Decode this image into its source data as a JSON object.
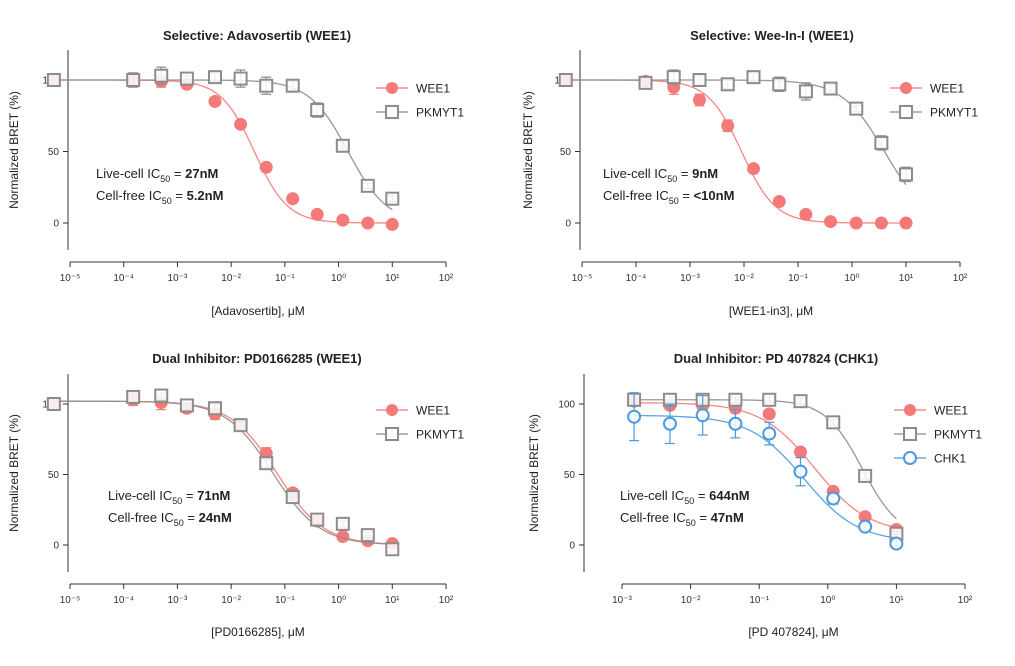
{
  "colors": {
    "WEE1": "#f47a79",
    "PKMYT1": "#8c8c8c",
    "CHK1": "#4a9ae0",
    "axis": "#333333"
  },
  "chart_data": [
    {
      "type": "scatter",
      "title": "Selective: Adavosertib (WEE1)",
      "xlabel": "[Adavosertib], μM",
      "ylabel": "Normalized BRET (%)",
      "xscale": "log",
      "xlim_exp": [
        -5,
        2
      ],
      "x_ticks": [
        "10⁻⁵",
        "10⁻⁴",
        "10⁻³",
        "10⁻²",
        "10⁻¹",
        "10⁰",
        "10¹",
        "10²"
      ],
      "y_ticks": [
        0,
        50,
        100
      ],
      "ylim": [
        -20,
        120
      ],
      "legend_position": "top-right",
      "annotation": {
        "line1_prefix": "Live-cell IC",
        "line1_sub": "50",
        "line1_eq": " = ",
        "line1_value": "27nM",
        "line2_prefix": "Cell-free IC",
        "line2_sub": "50",
        "line2_eq": " = ",
        "line2_value": "5.2nM"
      },
      "series": [
        {
          "name": "WEE1",
          "marker": "circle-filled",
          "color_key": "WEE1",
          "ic50": 0.027,
          "top": 100,
          "bottom": 0,
          "hill": 1.4,
          "x": [
            5e-06,
            0.00015,
            0.0005,
            0.0015,
            0.005,
            0.015,
            0.045,
            0.14,
            0.4,
            1.2,
            3.5,
            10
          ],
          "y": [
            100,
            100,
            99,
            97,
            85,
            69,
            39,
            17,
            6,
            2,
            0,
            -1
          ],
          "err": [
            3,
            3,
            4,
            2,
            2,
            2,
            2,
            2,
            2,
            2,
            1,
            1
          ]
        },
        {
          "name": "PKMYT1",
          "marker": "square-open",
          "color_key": "PKMYT1",
          "ic50": 1.5,
          "top": 100,
          "bottom": 0,
          "hill": 1.2,
          "x": [
            5e-06,
            0.00015,
            0.0005,
            0.0015,
            0.005,
            0.015,
            0.045,
            0.14,
            0.4,
            1.2,
            3.5,
            10
          ],
          "y": [
            100,
            100,
            103,
            101,
            102,
            101,
            96,
            96,
            79,
            54,
            26,
            17
          ],
          "err": [
            3,
            5,
            6,
            2,
            3,
            6,
            6,
            3,
            5,
            3,
            2,
            2
          ]
        }
      ]
    },
    {
      "type": "scatter",
      "title": "Selective: Wee-In-I (WEE1)",
      "xlabel": "[WEE1-in3], μM",
      "ylabel": "Normalized BRET (%)",
      "xscale": "log",
      "xlim_exp": [
        -5,
        2
      ],
      "x_ticks": [
        "10⁻⁵",
        "10⁻⁴",
        "10⁻³",
        "10⁻²",
        "10⁻¹",
        "10⁰",
        "10¹",
        "10²"
      ],
      "y_ticks": [
        0,
        50,
        100
      ],
      "ylim": [
        -20,
        120
      ],
      "legend_position": "top-right",
      "annotation": {
        "line1_prefix": "Live-cell IC",
        "line1_sub": "50",
        "line1_eq": " = ",
        "line1_value": "9nM",
        "line2_prefix": "Cell-free IC",
        "line2_sub": "50",
        "line2_eq": " = ",
        "line2_value": "<10nM"
      },
      "series": [
        {
          "name": "WEE1",
          "marker": "circle-filled",
          "color_key": "WEE1",
          "ic50": 0.009,
          "top": 100,
          "bottom": 0,
          "hill": 1.4,
          "x": [
            5e-06,
            0.00015,
            0.0005,
            0.0015,
            0.005,
            0.015,
            0.045,
            0.14,
            0.4,
            1.2,
            3.5,
            10
          ],
          "y": [
            100,
            99,
            95,
            86,
            68,
            38,
            15,
            6,
            1,
            0,
            0,
            0
          ],
          "err": [
            4,
            3,
            5,
            4,
            4,
            2,
            2,
            1,
            1,
            1,
            1,
            1
          ]
        },
        {
          "name": "PKMYT1",
          "marker": "square-open",
          "color_key": "PKMYT1",
          "ic50": 4.0,
          "top": 100,
          "bottom": 0,
          "hill": 1.1,
          "x": [
            5e-06,
            0.00015,
            0.0005,
            0.0015,
            0.005,
            0.015,
            0.045,
            0.14,
            0.4,
            1.2,
            3.5,
            10
          ],
          "y": [
            100,
            98,
            102,
            100,
            97,
            102,
            97,
            92,
            94,
            80,
            56,
            34
          ],
          "err": [
            4,
            4,
            5,
            3,
            3,
            3,
            5,
            6,
            3,
            2,
            5,
            5
          ]
        }
      ]
    },
    {
      "type": "scatter",
      "title": "Dual Inhibitor: PD0166285 (WEE1)",
      "xlabel": "[PD0166285], μM",
      "ylabel": "Normalized BRET (%)",
      "xscale": "log",
      "xlim_exp": [
        -5,
        2
      ],
      "x_ticks": [
        "10⁻⁵",
        "10⁻⁴",
        "10⁻³",
        "10⁻²",
        "10⁻¹",
        "10⁰",
        "10¹",
        "10²"
      ],
      "y_ticks": [
        0,
        50,
        100
      ],
      "ylim": [
        -20,
        120
      ],
      "legend_position": "top-right",
      "annotation": {
        "line1_prefix": "Live-cell IC",
        "line1_sub": "50",
        "line1_eq": " = ",
        "line1_value": "71nM",
        "line2_prefix": "Cell-free IC",
        "line2_sub": "50",
        "line2_eq": " = ",
        "line2_value": "24nM"
      },
      "series": [
        {
          "name": "WEE1",
          "marker": "circle-filled",
          "color_key": "WEE1",
          "ic50": 0.071,
          "top": 102,
          "bottom": 0,
          "hill": 1.0,
          "x": [
            5e-06,
            0.00015,
            0.0005,
            0.0015,
            0.005,
            0.015,
            0.045,
            0.14,
            0.4,
            1.2,
            3.5,
            10
          ],
          "y": [
            100,
            103,
            101,
            97,
            93,
            85,
            65,
            37,
            17,
            6,
            3,
            1
          ],
          "err": [
            3,
            4,
            5,
            3,
            4,
            3,
            4,
            3,
            2,
            2,
            2,
            2
          ]
        },
        {
          "name": "PKMYT1",
          "marker": "square-open",
          "color_key": "PKMYT1",
          "ic50": 0.06,
          "top": 102,
          "bottom": 0,
          "hill": 1.0,
          "x": [
            5e-06,
            0.00015,
            0.0005,
            0.0015,
            0.005,
            0.015,
            0.045,
            0.14,
            0.4,
            1.2,
            3.5,
            10
          ],
          "y": [
            100,
            105,
            106,
            99,
            97,
            85,
            58,
            34,
            18,
            15,
            7,
            -3
          ],
          "err": [
            2,
            3,
            2,
            2,
            3,
            3,
            3,
            2,
            2,
            2,
            2,
            2
          ]
        }
      ]
    },
    {
      "type": "scatter",
      "title": "Dual Inhibitor: PD 407824 (CHK1)",
      "xlabel": "[PD 407824], μM",
      "ylabel": "Normalized BRET (%)",
      "xscale": "log",
      "xlim_exp": [
        -3,
        2
      ],
      "x_ticks": [
        "10⁻³",
        "10⁻²",
        "10⁻¹",
        "10⁰",
        "10¹",
        "10²"
      ],
      "y_ticks": [
        0,
        50,
        100
      ],
      "ylim": [
        -20,
        120
      ],
      "legend_position": "top-right",
      "annotation": {
        "line1_prefix": "Live-cell IC",
        "line1_sub": "50",
        "line1_eq": " = ",
        "line1_value": "644nM",
        "line2_prefix": "Cell-free IC",
        "line2_sub": "50",
        "line2_eq": " = ",
        "line2_value": "47nM"
      },
      "series": [
        {
          "name": "WEE1",
          "marker": "circle-filled",
          "color_key": "WEE1",
          "ic50": 0.644,
          "top": 101,
          "bottom": 8,
          "hill": 1.1,
          "x": [
            0.0015,
            0.005,
            0.015,
            0.045,
            0.14,
            0.4,
            1.2,
            3.5,
            10
          ],
          "y": [
            102,
            99,
            99,
            97,
            93,
            66,
            38,
            20,
            11
          ],
          "err": [
            3,
            3,
            3,
            3,
            2,
            2,
            2,
            2,
            2
          ]
        },
        {
          "name": "PKMYT1",
          "marker": "square-open",
          "color_key": "PKMYT1",
          "ic50": 3.2,
          "top": 103,
          "bottom": 5,
          "hill": 1.6,
          "x": [
            0.0015,
            0.005,
            0.015,
            0.045,
            0.14,
            0.4,
            1.2,
            3.5,
            10
          ],
          "y": [
            103,
            103,
            103,
            103,
            103,
            102,
            87,
            49,
            8
          ],
          "err": [
            2,
            2,
            2,
            2,
            2,
            2,
            2,
            2,
            2
          ]
        },
        {
          "name": "CHK1",
          "marker": "circle-open",
          "color_key": "CHK1",
          "ic50": 0.45,
          "top": 92,
          "bottom": 2,
          "hill": 1.1,
          "x": [
            0.0015,
            0.005,
            0.015,
            0.045,
            0.14,
            0.4,
            1.2,
            3.5,
            10
          ],
          "y": [
            91,
            86,
            92,
            86,
            79,
            52,
            33,
            13,
            1
          ],
          "err": [
            17,
            14,
            14,
            10,
            8,
            10,
            4,
            3,
            2
          ]
        }
      ]
    }
  ]
}
